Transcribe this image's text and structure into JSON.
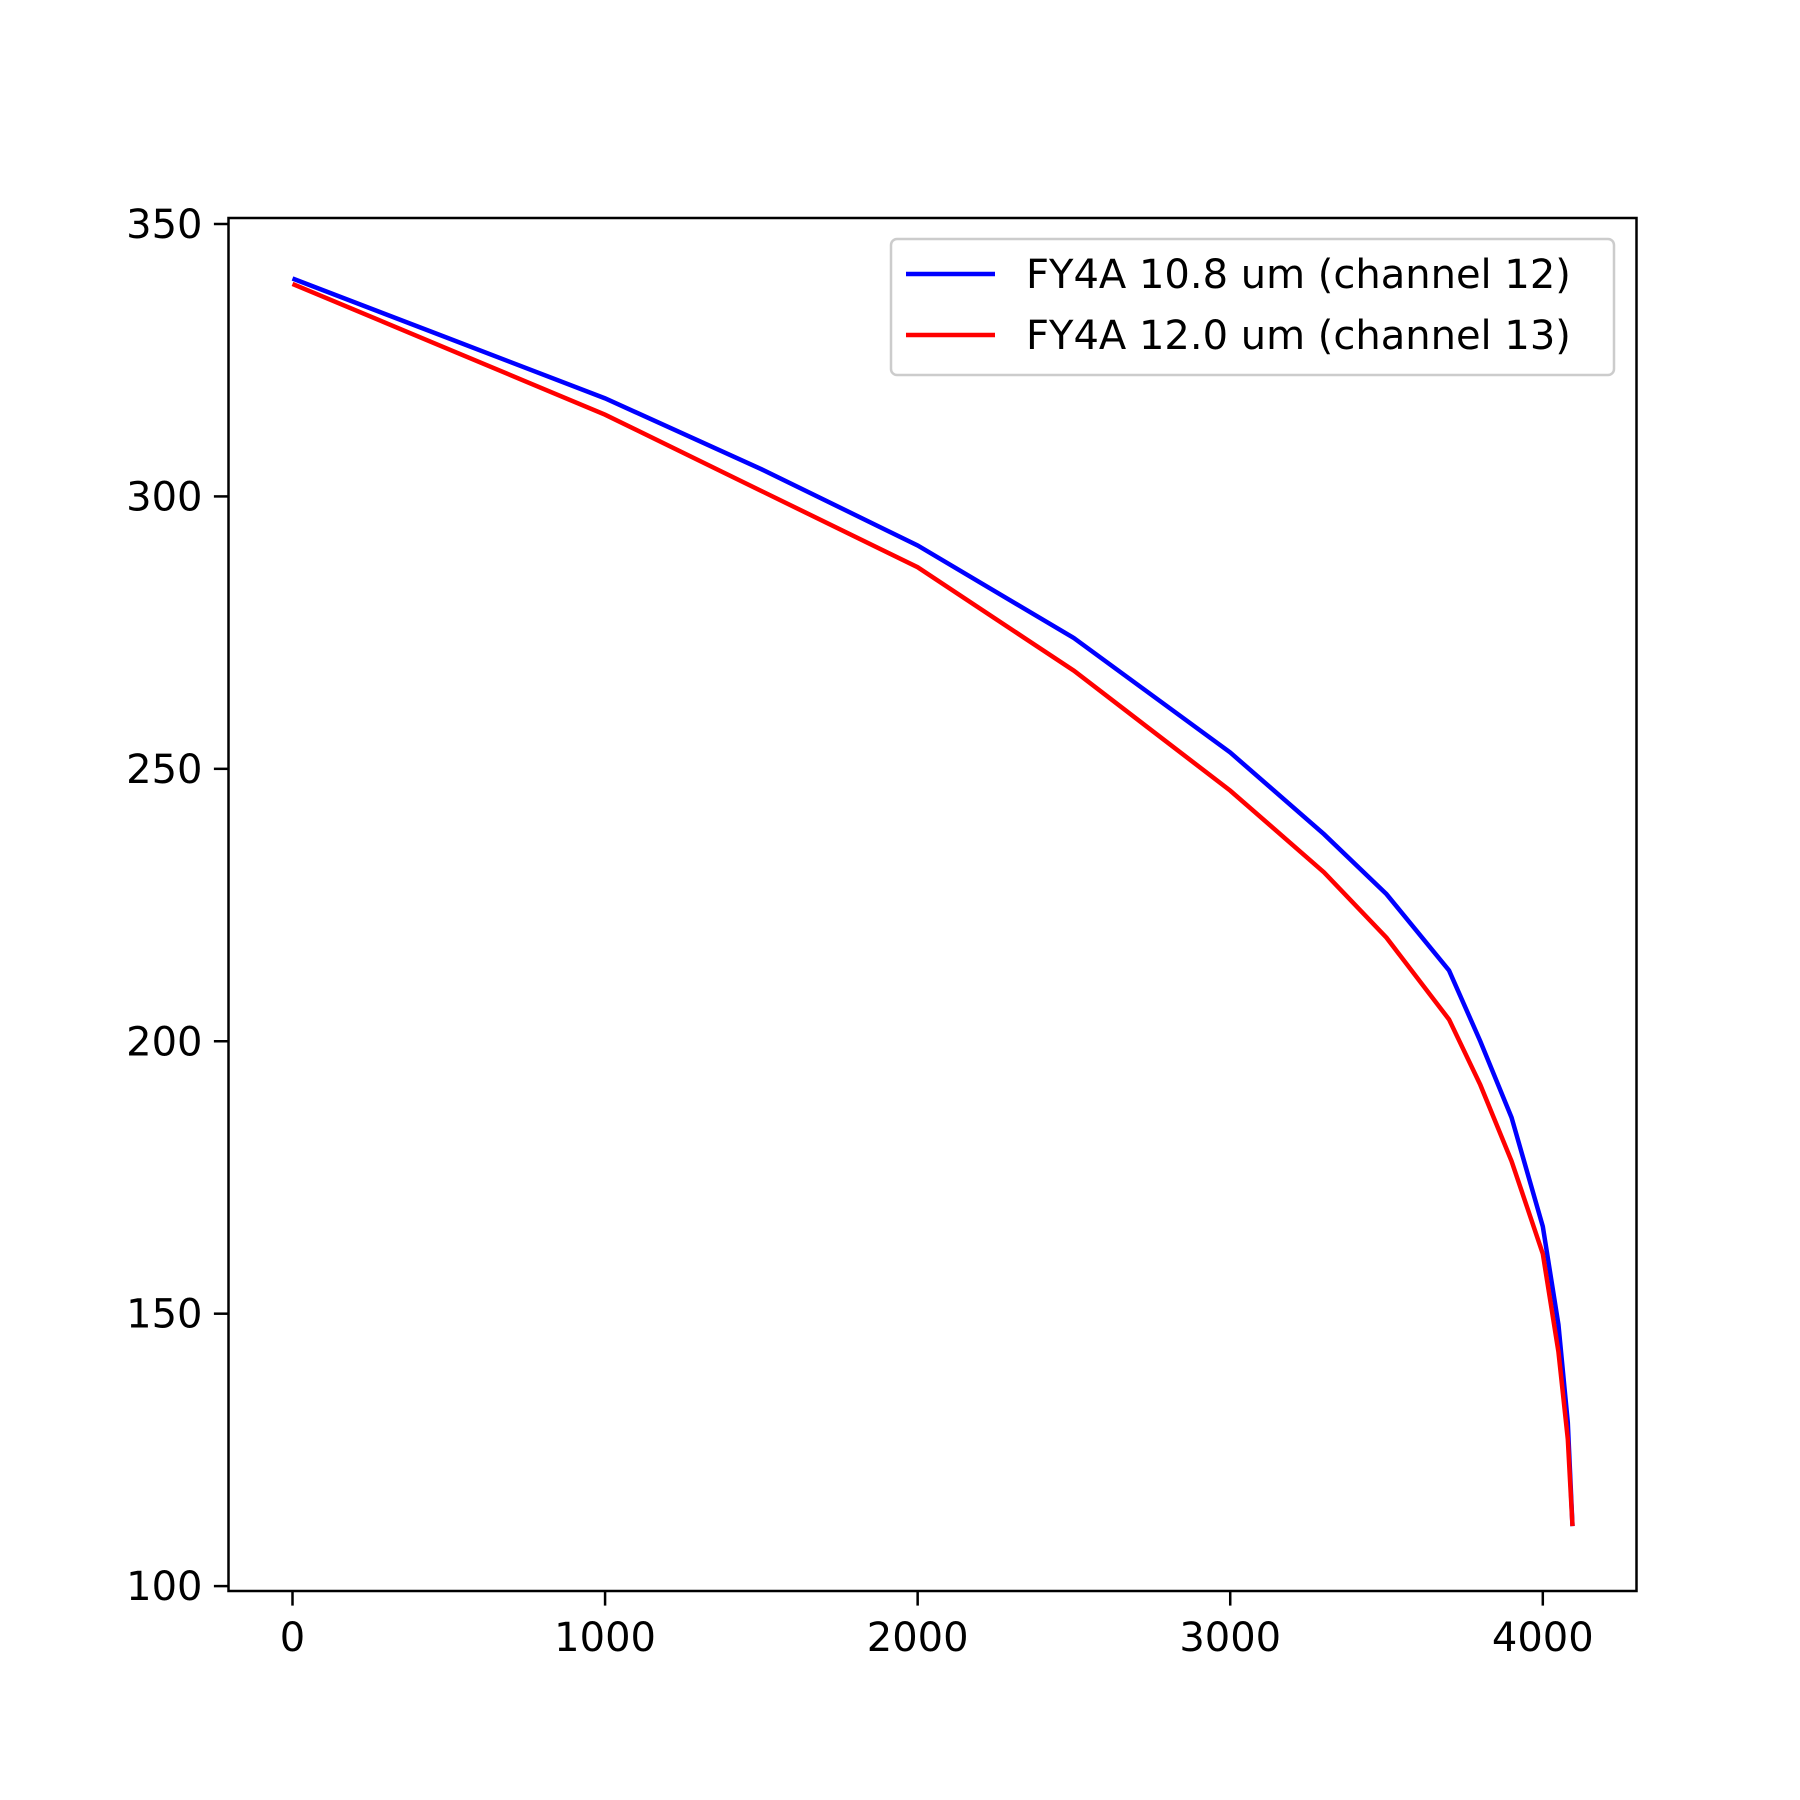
{
  "chart_data": {
    "type": "line",
    "x": [
      0,
      500,
      1000,
      1500,
      2000,
      2500,
      3000,
      3300,
      3500,
      3700,
      3800,
      3900,
      4000,
      4050,
      4080,
      4095
    ],
    "series": [
      {
        "name": "FY4A 10.8 um (channel 12)",
        "color": "#0000ff",
        "values": [
          340,
          329,
          318,
          305,
          291,
          274,
          253,
          238,
          227,
          213,
          200,
          186,
          166,
          148,
          130,
          111
        ]
      },
      {
        "name": "FY4A 12.0 um (channel 13)",
        "color": "#ff0000",
        "values": [
          339,
          327,
          315,
          301,
          287,
          268,
          246,
          231,
          219,
          204,
          192,
          178,
          161,
          143,
          127,
          111
        ]
      }
    ],
    "xlim": [
      -204.75,
      4299.75
    ],
    "ylim": [
      99.1,
      351.1
    ],
    "xticks": [
      0,
      1000,
      2000,
      3000,
      4000
    ],
    "yticks": [
      100,
      150,
      200,
      250,
      300,
      350
    ],
    "legend": "upper right"
  }
}
